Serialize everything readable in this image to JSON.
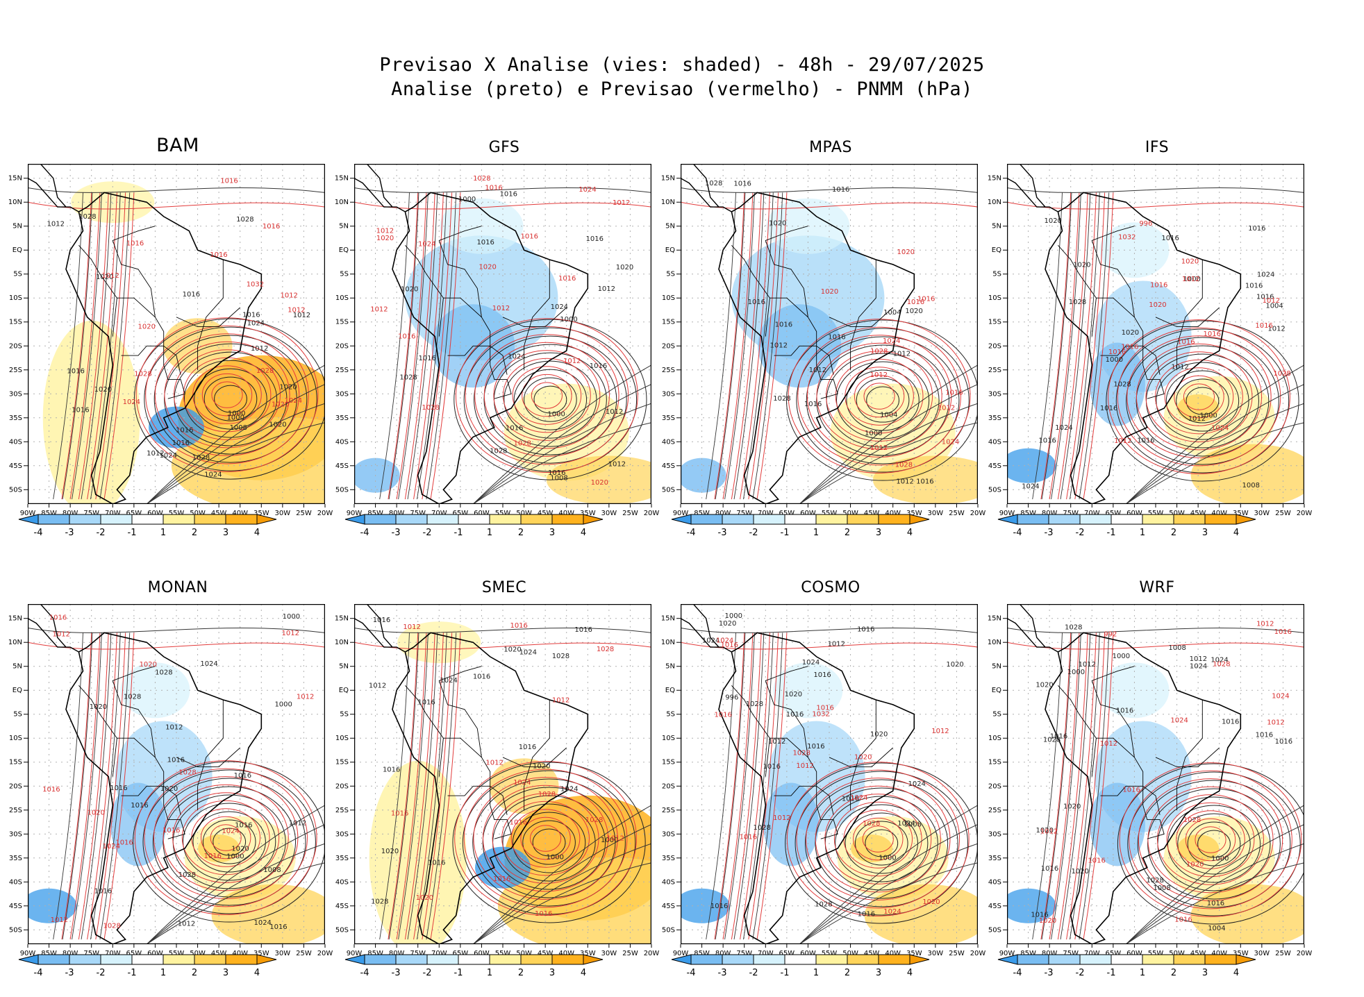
{
  "title_line1": "Previsao X Analise (vies: shaded) - 48h - 29/07/2025",
  "title_line2": "Analise (preto) e Previsao (vermelho) - PNMM (hPa)",
  "lat_labels": [
    "15N",
    "10N",
    "5N",
    "EQ",
    "5S",
    "10S",
    "15S",
    "20S",
    "25S",
    "30S",
    "35S",
    "40S",
    "45S",
    "50S"
  ],
  "lon_labels": [
    "90W",
    "85W",
    "80W",
    "75W",
    "70W",
    "65W",
    "60W",
    "55W",
    "50W",
    "45W",
    "40W",
    "35W",
    "30W",
    "25W",
    "20W"
  ],
  "colorbar_labels": [
    "-4",
    "-3",
    "-2",
    "-1",
    "1",
    "2",
    "3",
    "4"
  ],
  "colorbar_colors": [
    "#3a9bea",
    "#79bdf2",
    "#a8d8f8",
    "#d6f2fc",
    "#ffffff",
    "#fff3a0",
    "#ffd45a",
    "#ffb21e",
    "#f79c06"
  ],
  "models": [
    {
      "name": "BAM",
      "bias": "warm",
      "black_labels": [
        "1012",
        "1016",
        "1016",
        "1012",
        "1012",
        "1016",
        "1016",
        "1016",
        "1016",
        "1020",
        "1020",
        "1020",
        "1024",
        "1024",
        "1028",
        "1028",
        "1000",
        "1008",
        "1020",
        "1024",
        "1028",
        "1012"
      ],
      "red_labels": [
        "1016",
        "1012",
        "1016",
        "1012",
        "1020",
        "1024",
        "1028",
        "1016",
        "1020",
        "1016",
        "1012",
        "1028",
        "1032",
        "1024"
      ],
      "low_center": "1000"
    },
    {
      "name": "GFS",
      "bias": "cool",
      "black_labels": [
        "1012",
        "1016",
        "1016",
        "1012",
        "1016",
        "1016",
        "1020",
        "1016",
        "1024",
        "1028",
        "1016",
        "1024",
        "1000",
        "1008",
        "1016",
        "1020",
        "1028",
        "1000",
        "1012"
      ],
      "red_labels": [
        "1012",
        "1016",
        "1016",
        "1012",
        "1012",
        "1020",
        "1016",
        "1016",
        "1020",
        "1024",
        "1012",
        "1012",
        "1028",
        "1020",
        "1024",
        "1028",
        "1028"
      ],
      "low_center": "1000"
    },
    {
      "name": "MPAS",
      "bias": "cool",
      "black_labels": [
        "1012",
        "1016",
        "1016",
        "1012",
        "1016",
        "1020",
        "1016",
        "1012",
        "1028",
        "1004",
        "1020",
        "1016",
        "1028",
        "1012",
        "1016",
        "1000",
        "1016"
      ],
      "red_labels": [
        "1012",
        "1016",
        "1016",
        "1012",
        "1012",
        "1020",
        "1016",
        "1020",
        "1024",
        "1028",
        "1024",
        "1028"
      ],
      "low_center": "1004"
    },
    {
      "name": "IFS",
      "bias": "mixed",
      "black_labels": [
        "1012",
        "1016",
        "1016",
        "1012",
        "1016",
        "1016",
        "1016",
        "1020",
        "1016",
        "1024",
        "1024",
        "1028",
        "1000",
        "1008",
        "1020",
        "1020",
        "1016",
        "1012",
        "1004",
        "1000",
        "1028",
        "1024"
      ],
      "red_labels": [
        "1012",
        "1016",
        "1016",
        "1012",
        "1016",
        "1016",
        "1020",
        "1016",
        "1020",
        "1024",
        "1028",
        "1016",
        "1012",
        "996",
        "1032"
      ],
      "low_center": "1000"
    },
    {
      "name": "MONAN",
      "bias": "mixed",
      "black_labels": [
        "1012",
        "1016",
        "1016",
        "1012",
        "1016",
        "1020",
        "1016",
        "1016",
        "1024",
        "1016",
        "1028",
        "1020",
        "1024",
        "1000",
        "1008",
        "1020",
        "1028",
        "1016",
        "1012",
        "1000",
        "1028"
      ],
      "red_labels": [
        "1012",
        "1016",
        "1016",
        "1012",
        "1012",
        "1016",
        "1020",
        "1016",
        "1012",
        "1024",
        "1024",
        "1028",
        "1028",
        "1020",
        "1016"
      ],
      "low_center": "1000"
    },
    {
      "name": "SMEC",
      "bias": "warm",
      "black_labels": [
        "1012",
        "1016",
        "1016",
        "1016",
        "1016",
        "1020",
        "1016",
        "1016",
        "1024",
        "1020",
        "1024",
        "1028",
        "1000",
        "1016",
        "1020",
        "1024",
        "1028"
      ],
      "red_labels": [
        "1012",
        "1016",
        "1016",
        "1012",
        "1016",
        "1016",
        "1012",
        "1020",
        "1024",
        "1028",
        "1016",
        "1012",
        "1028",
        "1028"
      ],
      "low_center": "1000"
    },
    {
      "name": "COSMO",
      "bias": "mixed",
      "black_labels": [
        "1012",
        "1016",
        "1016",
        "1012",
        "1016",
        "1016",
        "1016",
        "1020",
        "1020",
        "1024",
        "1016",
        "1024",
        "1028",
        "1020",
        "1024",
        "1008",
        "1000",
        "1016",
        "1020",
        "1016",
        "1028",
        "1024",
        "1028",
        "996"
      ],
      "red_labels": [
        "1012",
        "1016",
        "1016",
        "1012",
        "1012",
        "1016",
        "1020",
        "1024",
        "1016",
        "1020",
        "1024",
        "1028",
        "1032",
        "1024",
        "1028"
      ],
      "low_center": "1000"
    },
    {
      "name": "WRF",
      "bias": "mixed",
      "black_labels": [
        "1016",
        "1016",
        "1012",
        "1020",
        "1016",
        "1012",
        "1016",
        "1016",
        "1016",
        "1020",
        "1016",
        "1024",
        "1028",
        "1028",
        "1020",
        "1000",
        "1008",
        "1020",
        "1016",
        "1024",
        "1008",
        "1004",
        "1000",
        "1028"
      ],
      "red_labels": [
        "1012",
        "1016",
        "1016",
        "1012",
        "1012",
        "1016",
        "1020",
        "1024",
        "1028",
        "1024",
        "1016",
        "1012",
        "1020",
        "992",
        "1028"
      ],
      "low_center": "1000"
    }
  ]
}
